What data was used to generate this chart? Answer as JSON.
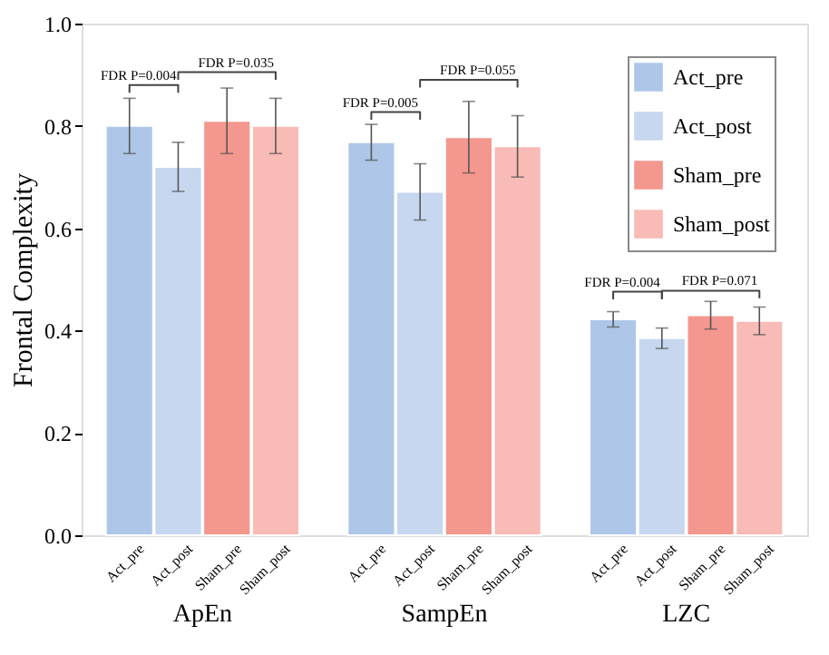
{
  "chart_data": {
    "type": "bar",
    "ylabel": "Frontal Complexity",
    "categories": [
      "ApEn",
      "SampEn",
      "LZC"
    ],
    "series": [
      {
        "name": "Act_pre",
        "color": "#aec7e8",
        "values": [
          0.8,
          0.768,
          0.422
        ],
        "errors": [
          0.054,
          0.035,
          0.015
        ]
      },
      {
        "name": "Act_post",
        "color": "#c6d7ef",
        "values": [
          0.72,
          0.671,
          0.385
        ],
        "errors": [
          0.048,
          0.055,
          0.02
        ]
      },
      {
        "name": "Sham_pre",
        "color": "#f4978e",
        "values": [
          0.81,
          0.778,
          0.43
        ],
        "errors": [
          0.064,
          0.07,
          0.027
        ]
      },
      {
        "name": "Sham_post",
        "color": "#f9bbb6",
        "values": [
          0.8,
          0.76,
          0.419
        ],
        "errors": [
          0.054,
          0.06,
          0.027
        ]
      }
    ],
    "ylim": [
      0,
      1.0
    ],
    "yticks": [
      {
        "value": 0,
        "label": "0.0"
      },
      0.2,
      0.4,
      0.6,
      0.8,
      {
        "value": 1.0,
        "label": "1.0"
      }
    ],
    "annotations": [
      "FDR P=0.004",
      "FDR P=0.035",
      "FDR P=0.005",
      "FDR P=0.055",
      "FDR P=0.004",
      "FDR P=0.071"
    ],
    "grid": false,
    "legend": "top right"
  }
}
